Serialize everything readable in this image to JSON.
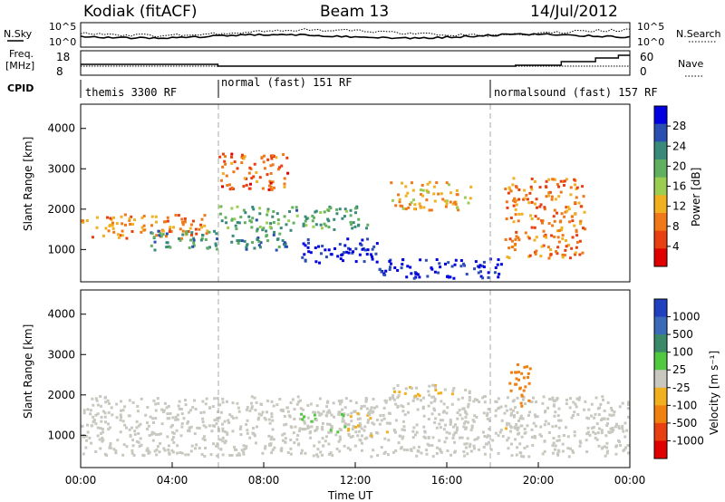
{
  "header": {
    "radar": "Kodiak (fitACF)",
    "beam": "Beam 13",
    "date": "14/Jul/2012"
  },
  "params_panel": {
    "nsky_label": "N.Sky",
    "nsearch_label": "N.Search",
    "freq_label_line1": "Freq.",
    "freq_label_line2": "[MHz]",
    "nave_label": "Nave",
    "cpid_label": "CPID",
    "noise_ticks": [
      "10^5",
      "10^0"
    ],
    "freq_ticks": [
      "18",
      "8"
    ],
    "nave_ticks": [
      "60",
      "0"
    ]
  },
  "cpid_segments": [
    {
      "label": "themis 3300 RF",
      "start_hour": 0,
      "end_hour": 6
    },
    {
      "label": "normal (fast) 151 RF",
      "start_hour": 6,
      "end_hour": 18
    },
    {
      "label": "normalsound (fast) 157 RF",
      "start_hour": 18,
      "end_hour": 24
    }
  ],
  "x_axis": {
    "title": "Time UT",
    "ticks": [
      "00:00",
      "04:00",
      "08:00",
      "12:00",
      "16:00",
      "20:00",
      "00:00"
    ],
    "range_hours": [
      0,
      24
    ]
  },
  "power_panel": {
    "ylabel": "Slant Range [km]",
    "yticks": [
      "4000",
      "3000",
      "2000",
      "1000"
    ],
    "colorbar_label": "Power [dB]",
    "colorbar_ticks": [
      "28",
      "24",
      "20",
      "16",
      "12",
      "8",
      "4"
    ],
    "colors": [
      "#0000e0",
      "#2a4fb0",
      "#3a8a7a",
      "#60b060",
      "#9acd50",
      "#f0b020",
      "#f07818",
      "#e84010",
      "#e00000"
    ]
  },
  "velocity_panel": {
    "ylabel": "Slant Range [km]",
    "yticks": [
      "4000",
      "3000",
      "2000",
      "1000"
    ],
    "colorbar_label": "Velocity [m s⁻¹]",
    "colorbar_ticks": [
      "1000",
      "500",
      "100",
      "25",
      "-25",
      "-100",
      "-500",
      "-1000"
    ],
    "colors": [
      "#2040c0",
      "#3a6ab8",
      "#3a8a6a",
      "#50c840",
      "#c8c8c0",
      "#f0b020",
      "#f08010",
      "#e84010",
      "#e00000"
    ]
  },
  "chart_data": [
    {
      "type": "heatmap",
      "title": "Power",
      "xlabel": "Time UT",
      "ylabel": "Slant Range [km]",
      "xlim": [
        0,
        24
      ],
      "ylim": [
        200,
        4600
      ],
      "colorbar_range": [
        2,
        30
      ],
      "features": [
        {
          "t": [
            0.0,
            5.5
          ],
          "range": [
            1300,
            1900
          ],
          "value": 10
        },
        {
          "t": [
            3.0,
            9.0
          ],
          "range": [
            1000,
            1500
          ],
          "value": 22
        },
        {
          "t": [
            6.0,
            12.5
          ],
          "range": [
            1500,
            2100
          ],
          "value": 20
        },
        {
          "t": [
            9.5,
            13.0
          ],
          "range": [
            700,
            1300
          ],
          "value": 28
        },
        {
          "t": [
            13.0,
            18.5
          ],
          "range": [
            300,
            800
          ],
          "value": 28
        },
        {
          "t": [
            13.5,
            17.0
          ],
          "range": [
            2000,
            2700
          ],
          "value": 12
        },
        {
          "t": [
            18.5,
            22.0
          ],
          "range": [
            800,
            2800
          ],
          "value": 10
        },
        {
          "t": [
            6.0,
            9.0
          ],
          "range": [
            2500,
            3400
          ],
          "value": 8
        }
      ]
    },
    {
      "type": "heatmap",
      "title": "Velocity",
      "xlabel": "Time UT",
      "ylabel": "Slant Range [km]",
      "xlim": [
        0,
        24
      ],
      "ylim": [
        200,
        4600
      ],
      "colorbar_range": [
        -1000,
        1000
      ],
      "features": [
        {
          "t": [
            0.0,
            24.0
          ],
          "range": [
            500,
            2000
          ],
          "value": 0
        },
        {
          "t": [
            9.5,
            11.5
          ],
          "range": [
            1100,
            1700
          ],
          "value": 100
        },
        {
          "t": [
            11.5,
            13.5
          ],
          "range": [
            1000,
            1600
          ],
          "value": -100
        },
        {
          "t": [
            13.5,
            17.0
          ],
          "range": [
            2000,
            2300
          ],
          "value": -100
        },
        {
          "t": [
            18.7,
            19.6
          ],
          "range": [
            1700,
            2800
          ],
          "value": -500
        },
        {
          "t": [
            18.5,
            19.0
          ],
          "range": [
            900,
            1400
          ],
          "value": -100
        }
      ]
    }
  ]
}
